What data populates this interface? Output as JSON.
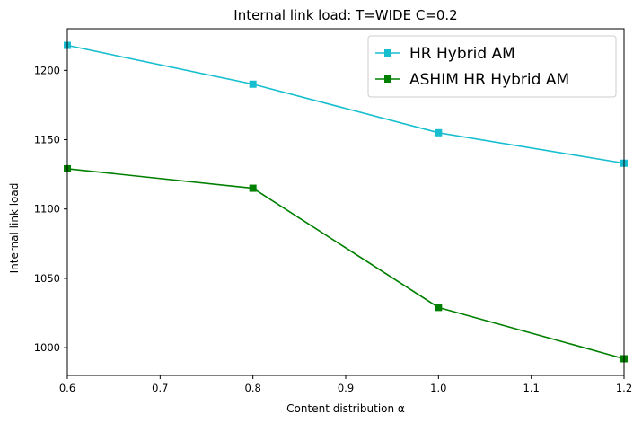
{
  "chart_data": {
    "type": "line",
    "title": "Internal link load: T=WIDE C=0.2",
    "xlabel": "Content distribution α",
    "ylabel": "Internal link load",
    "x": [
      0.6,
      0.8,
      1.0,
      1.2
    ],
    "xlim": [
      0.6,
      1.2
    ],
    "ylim": [
      980,
      1230
    ],
    "xticks": [
      "0.6",
      "0.7",
      "0.8",
      "0.9",
      "1.0",
      "1.1",
      "1.2"
    ],
    "yticks": [
      "1000",
      "1050",
      "1100",
      "1150",
      "1200"
    ],
    "grid": false,
    "legend_position": "top-right",
    "series": [
      {
        "name": "HR Hybrid AM",
        "color": "#17becf",
        "marker": "square",
        "values": [
          1218,
          1190,
          1155,
          1133
        ]
      },
      {
        "name": "ASHIM HR Hybrid AM",
        "color": "#008000",
        "marker": "square",
        "values": [
          1129,
          1115,
          1029,
          992
        ]
      }
    ]
  }
}
